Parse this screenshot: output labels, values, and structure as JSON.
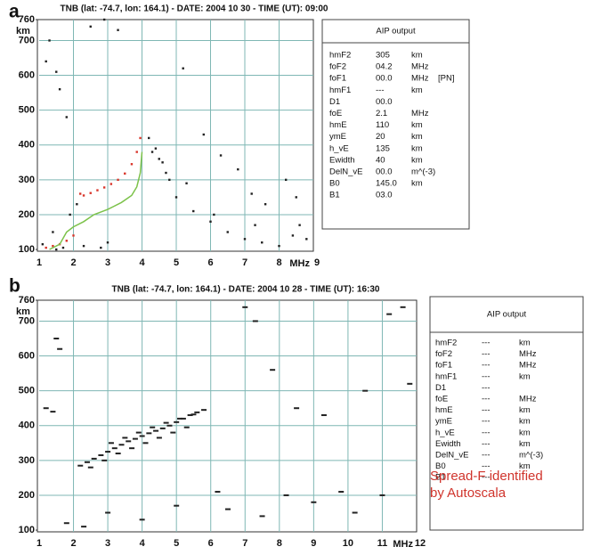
{
  "chart_data": [
    {
      "type": "scatter",
      "label": "a",
      "title": "TNB (lat: -74.7, lon: 164.1) - DATE: 2004 10 30 - TIME (UT): 09:00",
      "xlim": [
        1,
        9
      ],
      "ylim": [
        95,
        760
      ],
      "xticks": [
        1,
        2,
        3,
        4,
        5,
        6,
        7,
        8,
        9
      ],
      "yticks": [
        100,
        200,
        300,
        400,
        500,
        600,
        700,
        760
      ],
      "x_unit": "MHz",
      "y_unit": "km",
      "grid": true,
      "series": [
        {
          "color": "#222222",
          "style": "dot",
          "x": [
            1.3,
            1.5,
            1.6,
            1.2,
            1.8,
            2.5,
            2.9,
            3.3,
            5.2,
            5.8,
            6.3,
            6.8,
            7.2,
            7.6,
            8.2,
            8.6,
            8.8,
            1.4,
            1.9,
            2.1,
            3.0,
            4.3,
            4.5,
            4.7,
            5.0,
            5.5,
            6.0,
            6.5,
            7.0,
            7.5,
            8.0,
            8.4,
            1.1,
            1.7,
            2.3,
            5.3,
            6.1,
            7.3,
            8.5,
            4.2,
            4.4,
            4.6,
            4.8,
            1.5,
            2.8
          ],
          "values": [
            700,
            610,
            560,
            640,
            480,
            740,
            760,
            730,
            620,
            430,
            370,
            330,
            260,
            230,
            300,
            170,
            130,
            150,
            200,
            230,
            120,
            380,
            360,
            320,
            250,
            210,
            180,
            150,
            130,
            120,
            110,
            140,
            115,
            105,
            110,
            290,
            200,
            170,
            250,
            420,
            390,
            350,
            300,
            100,
            105
          ]
        },
        {
          "color": "#d9362b",
          "style": "dot",
          "x": [
            1.2,
            1.4,
            1.6,
            1.8,
            2.0,
            2.2,
            2.3,
            2.5,
            2.7,
            2.9,
            3.1,
            3.3,
            3.5,
            3.7,
            3.85,
            3.95
          ],
          "values": [
            105,
            110,
            115,
            125,
            140,
            260,
            255,
            262,
            270,
            278,
            288,
            300,
            318,
            345,
            380,
            420
          ]
        },
        {
          "color": "#7cc24a",
          "style": "line",
          "x": [
            1.3,
            1.6,
            1.8,
            2.0,
            2.3,
            2.6,
            3.0,
            3.4,
            3.7,
            3.85,
            3.95,
            4.0
          ],
          "values": [
            100,
            115,
            150,
            165,
            180,
            200,
            215,
            235,
            255,
            280,
            320,
            380
          ]
        }
      ],
      "aip_output": {
        "title": "AIP output",
        "rows": [
          [
            "hmF2",
            "305",
            "km"
          ],
          [
            "foF2",
            "04.2",
            "MHz"
          ],
          [
            "foF1",
            "00.0",
            "MHz",
            "[PN]"
          ],
          [
            "hmF1",
            "---",
            "km"
          ],
          [
            "D1",
            "00.0"
          ],
          [
            "foE",
            "2.1",
            "MHz"
          ],
          [
            "hmE",
            "110",
            "km"
          ],
          [
            "ymE",
            "20",
            "km"
          ],
          [
            "h_vE",
            "135",
            "km"
          ],
          [
            "Ewidth",
            "40",
            "km"
          ],
          [
            "DelN_vE",
            "00.0",
            "m^(-3)"
          ],
          [
            "B0",
            "145.0",
            "km"
          ],
          [
            "B1",
            "03.0"
          ]
        ]
      }
    },
    {
      "type": "scatter",
      "label": "b",
      "title": "TNB (lat: -74.7, lon: 164.1) - DATE: 2004 10 28 - TIME (UT): 16:30",
      "xlim": [
        1,
        12
      ],
      "ylim": [
        95,
        760
      ],
      "xticks": [
        1,
        2,
        3,
        4,
        5,
        6,
        7,
        8,
        9,
        10,
        11,
        12
      ],
      "yticks": [
        100,
        200,
        300,
        400,
        500,
        600,
        700,
        760
      ],
      "x_unit": "MHz",
      "y_unit": "km",
      "grid": true,
      "series": [
        {
          "color": "#222222",
          "style": "dash",
          "x": [
            1.5,
            1.6,
            1.4,
            2.2,
            2.4,
            2.6,
            2.8,
            3.0,
            3.2,
            3.4,
            3.6,
            3.8,
            4.0,
            4.2,
            4.4,
            4.6,
            4.8,
            5.0,
            5.2,
            5.4,
            5.6,
            5.8,
            3.1,
            3.5,
            3.9,
            4.3,
            4.7,
            5.1,
            5.5,
            2.5,
            2.9,
            3.3,
            3.7,
            4.1,
            4.5,
            4.9,
            5.3,
            7.0,
            7.3,
            7.8,
            8.5,
            9.3,
            10.5,
            11.2,
            11.6,
            6.5,
            7.5,
            8.2,
            9.0,
            9.8,
            10.2,
            11.0,
            1.8,
            2.3,
            3.0,
            4.0,
            5.0,
            6.2,
            1.2,
            11.8
          ],
          "values": [
            650,
            620,
            440,
            285,
            295,
            305,
            315,
            325,
            335,
            345,
            355,
            362,
            370,
            378,
            385,
            392,
            400,
            410,
            420,
            430,
            438,
            445,
            350,
            365,
            380,
            395,
            408,
            420,
            432,
            280,
            300,
            320,
            335,
            350,
            365,
            380,
            395,
            740,
            700,
            560,
            450,
            430,
            500,
            720,
            740,
            160,
            140,
            200,
            180,
            210,
            150,
            200,
            120,
            110,
            150,
            130,
            170,
            210,
            450,
            520
          ]
        }
      ],
      "aip_output": {
        "title": "AIP output",
        "rows": [
          [
            "hmF2",
            "---",
            "km"
          ],
          [
            "foF2",
            "---",
            "MHz"
          ],
          [
            "foF1",
            "---",
            "MHz"
          ],
          [
            "hmF1",
            "---",
            "km"
          ],
          [
            "D1",
            "---"
          ],
          [
            "foE",
            "---",
            "MHz"
          ],
          [
            "hmE",
            "---",
            "km"
          ],
          [
            "ymE",
            "---",
            "km"
          ],
          [
            "h_vE",
            "---",
            "km"
          ],
          [
            "Ewidth",
            "---",
            "km"
          ],
          [
            "DelN_vE",
            "---",
            "m^(-3)"
          ],
          [
            "B0",
            "---",
            "km"
          ],
          [
            "B1",
            "---"
          ]
        ]
      },
      "annotation": [
        "Spread-F identified",
        "by Autoscala"
      ]
    }
  ]
}
